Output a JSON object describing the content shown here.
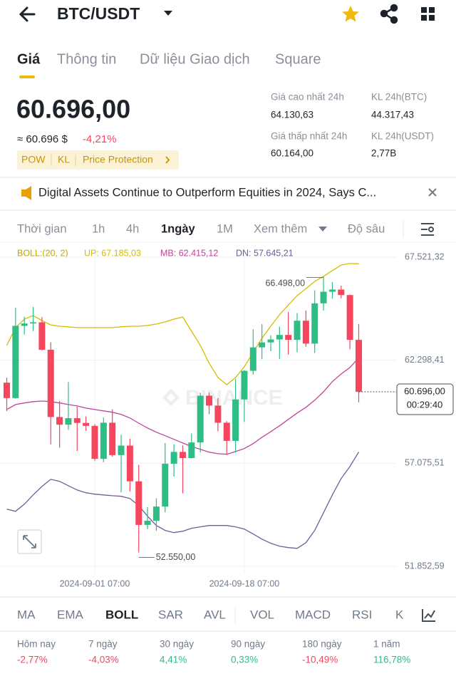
{
  "header": {
    "pair": "BTC/USDT"
  },
  "tabs": [
    "Giá",
    "Thông tin",
    "Dữ liệu Giao dịch",
    "Square"
  ],
  "price": {
    "last": "60.696,00",
    "approx": "≈ 60.696 $",
    "change": "-4,21%",
    "tags": [
      "POW",
      "KL",
      "Price Protection"
    ]
  },
  "stats": [
    {
      "label": "Giá cao nhất 24h",
      "value": "64.130,63"
    },
    {
      "label": "KL 24h(BTC)",
      "value": "44.317,43"
    },
    {
      "label": "Giá thấp nhất 24h",
      "value": "60.164,00"
    },
    {
      "label": "KL 24h(USDT)",
      "value": "2,77B"
    }
  ],
  "news": "Digital Assets Continue to Outperform Equities in 2024, Says C...",
  "intervals": [
    "Thời gian",
    "1h",
    "4h",
    "1ngày",
    "1M",
    "Xem thêm",
    "Độ sâu"
  ],
  "chart_data": {
    "type": "candlestick",
    "indicator": "BOLL:(20, 2)",
    "watermark": "BINANCE",
    "x": [
      "2024-08-22 07:00",
      "2024-08-23 07:00",
      "2024-08-24 07:00",
      "2024-08-25 07:00",
      "2024-08-26 07:00",
      "2024-08-27 07:00",
      "2024-08-28 07:00",
      "2024-08-29 07:00",
      "2024-08-30 07:00",
      "2024-08-31 07:00",
      "2024-09-01 07:00",
      "2024-09-02 07:00",
      "2024-09-03 07:00",
      "2024-09-04 07:00",
      "2024-09-05 07:00",
      "2024-09-06 07:00",
      "2024-09-07 07:00",
      "2024-09-08 07:00",
      "2024-09-09 07:00",
      "2024-09-10 07:00",
      "2024-09-11 07:00",
      "2024-09-12 07:00",
      "2024-09-13 07:00",
      "2024-09-14 07:00",
      "2024-09-15 07:00",
      "2024-09-16 07:00",
      "2024-09-17 07:00",
      "2024-09-18 07:00",
      "2024-09-19 07:00",
      "2024-09-20 07:00",
      "2024-09-21 07:00",
      "2024-09-22 07:00",
      "2024-09-23 07:00",
      "2024-09-24 07:00",
      "2024-09-25 07:00",
      "2024-09-26 07:00",
      "2024-09-27 07:00",
      "2024-09-28 07:00",
      "2024-09-29 07:00",
      "2024-09-30 07:00",
      "2024-10-01 07:00"
    ],
    "open": [
      61160,
      60380,
      64040,
      64160,
      64220,
      62830,
      59420,
      59030,
      59360,
      59120,
      58970,
      57300,
      59130,
      57490,
      57970,
      56160,
      53950,
      54160,
      54880,
      57050,
      57650,
      57340,
      58130,
      60500,
      60000,
      59130,
      58210,
      60310,
      61760,
      62950,
      63200,
      63350,
      63580,
      63330,
      64300,
      63140,
      65180,
      65770,
      65880,
      65600,
      63330
    ],
    "high": [
      61420,
      64960,
      64500,
      65000,
      64480,
      63210,
      60240,
      61190,
      59940,
      59450,
      59060,
      59400,
      59810,
      58520,
      58320,
      56990,
      54850,
      55300,
      58100,
      58040,
      57990,
      58590,
      60650,
      60650,
      60380,
      59210,
      61350,
      61790,
      63870,
      64130,
      63560,
      64000,
      64750,
      64690,
      64820,
      65840,
      66498,
      66260,
      66080,
      65620,
      64130.63
    ],
    "low": [
      59720,
      60350,
      63600,
      63770,
      62800,
      58030,
      57860,
      58770,
      57700,
      58720,
      57200,
      57130,
      57410,
      55600,
      55650,
      52550,
      53740,
      53650,
      54590,
      56400,
      55550,
      57320,
      57630,
      59560,
      58700,
      57500,
      57610,
      59170,
      61570,
      62350,
      62760,
      62360,
      62580,
      62700,
      62980,
      62670,
      64820,
      65420,
      65440,
      62850,
      60164
    ],
    "close": [
      60380,
      64040,
      64160,
      64220,
      62830,
      59420,
      59030,
      59360,
      59120,
      58970,
      57300,
      59130,
      57490,
      57970,
      56160,
      53950,
      54160,
      54880,
      57050,
      57650,
      57340,
      58130,
      60500,
      60000,
      59130,
      58210,
      60310,
      61760,
      62950,
      63200,
      63350,
      63580,
      63330,
      64300,
      63140,
      65180,
      65770,
      65880,
      65600,
      63330,
      60696
    ],
    "up_color": "#2ebd85",
    "down_color": "#f6465d",
    "series": [
      {
        "name": "UP: 67.185,03",
        "color": "#d9bb00",
        "values": [
          63050,
          63950,
          64380,
          64560,
          64310,
          64090,
          64020,
          63990,
          63950,
          63950,
          63950,
          63950,
          63950,
          63990,
          64020,
          64020,
          64060,
          64130,
          64240,
          64380,
          64490,
          63770,
          63050,
          62150,
          61420,
          61060,
          61420,
          61970,
          62690,
          63410,
          64020,
          64600,
          65100,
          65570,
          65930,
          66290,
          66550,
          66840,
          67120,
          67200,
          67185.03
        ]
      },
      {
        "name": "MB: 62.415,12",
        "color": "#c2449a",
        "values": [
          59800,
          60050,
          60130,
          60200,
          60230,
          60200,
          60130,
          60050,
          59980,
          59870,
          59800,
          59730,
          59660,
          59550,
          59370,
          59110,
          58860,
          58650,
          58470,
          58290,
          58100,
          57920,
          57780,
          57640,
          57560,
          57530,
          57670,
          57820,
          58070,
          58390,
          58680,
          58970,
          59300,
          59620,
          59910,
          60270,
          60700,
          61210,
          61600,
          61930,
          62415.12
        ]
      },
      {
        "name": "DN: 57.645,21",
        "color": "#6f5c9c",
        "values": [
          54750,
          54640,
          55000,
          55470,
          55900,
          56260,
          56160,
          55940,
          55720,
          55580,
          55510,
          55470,
          55430,
          55400,
          55290,
          54930,
          54390,
          53920,
          53670,
          53560,
          53630,
          53780,
          53850,
          53920,
          53920,
          53920,
          53850,
          53740,
          53490,
          53230,
          53020,
          52870,
          52800,
          52760,
          53050,
          53670,
          54570,
          55470,
          56300,
          56910,
          57645.21
        ]
      }
    ],
    "ylim": [
      51490,
      68100
    ],
    "yticks": [
      {
        "value": 67521.32,
        "label": "67.521,32"
      },
      {
        "value": 62298.41,
        "label": "62.298,41"
      },
      {
        "value": 57075.51,
        "label": "57.075,51"
      },
      {
        "value": 51852.59,
        "label": "51.852,59"
      }
    ],
    "xticks": [
      "2024-09-01 07:00",
      "2024-09-18 07:00"
    ],
    "grid": true,
    "annotations": [
      {
        "label": "66.498,00",
        "value": 66498
      },
      {
        "label": "52.550,00",
        "value": 52550
      }
    ],
    "last": {
      "value": 60696,
      "label": "60.696,00",
      "countdown": "00:29:40"
    }
  },
  "indicators": [
    "MA",
    "EMA",
    "BOLL",
    "SAR",
    "AVL",
    "VOL",
    "MACD",
    "RSI",
    "K"
  ],
  "performance": [
    {
      "period": "Hôm nay",
      "change": "-2,77%"
    },
    {
      "period": "7 ngày",
      "change": "-4,03%"
    },
    {
      "period": "30 ngày",
      "change": "4,41%"
    },
    {
      "period": "90 ngày",
      "change": "0,33%"
    },
    {
      "period": "180 ngày",
      "change": "-10,49%"
    },
    {
      "period": "1 năm",
      "change": "116,78%"
    }
  ]
}
